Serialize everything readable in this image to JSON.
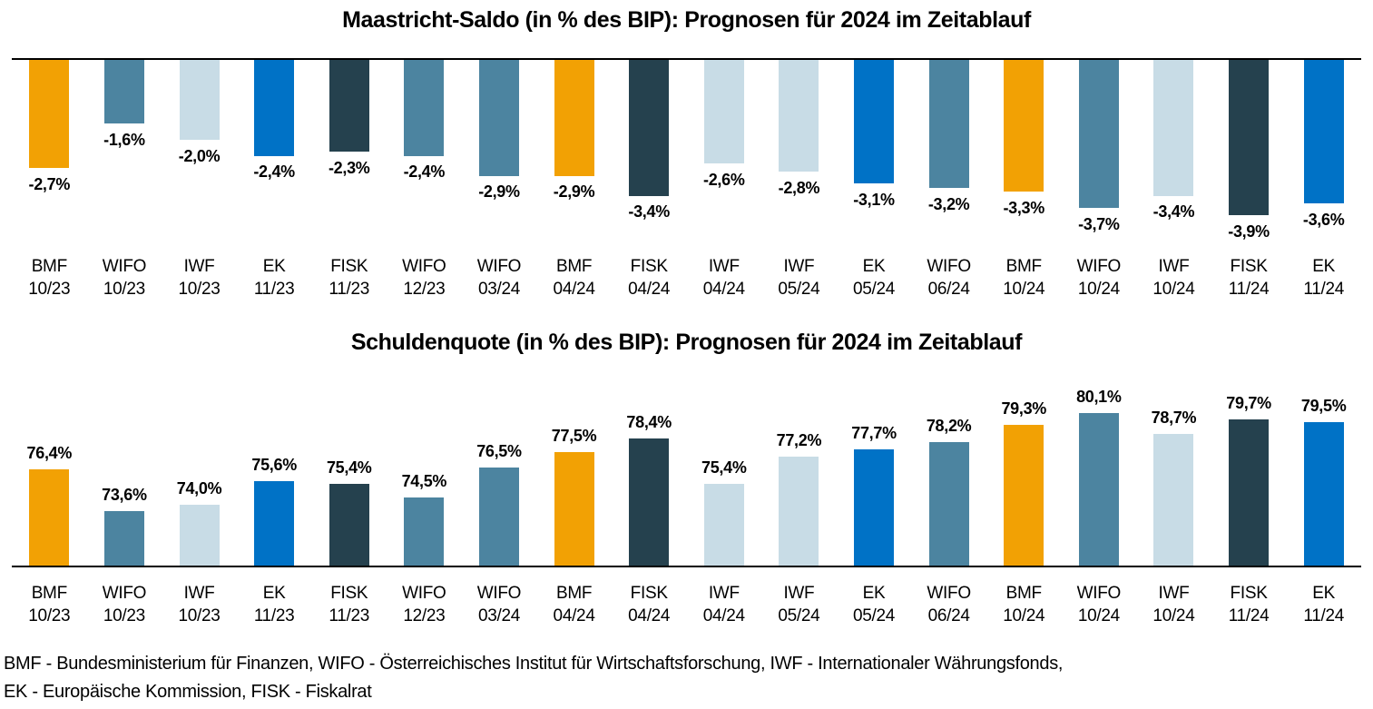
{
  "colors": {
    "BMF": "#F2A104",
    "WIFO": "#4C84A0",
    "IWF": "#C8DCE6",
    "EK": "#0072C6",
    "FISK": "#25414E",
    "axis": "#000000",
    "text": "#000000",
    "background": "#FFFFFF"
  },
  "chart_data": [
    {
      "type": "bar",
      "direction": "down",
      "title": "Maastricht-Saldo (in % des BIP): Prognosen für 2024 im Zeitablauf",
      "ylabel": "% des BIP",
      "ylim": [
        -4.55,
        0
      ],
      "grid": false,
      "legend_position": "none",
      "categories": [
        {
          "org": "BMF",
          "date": "10/23"
        },
        {
          "org": "WIFO",
          "date": "10/23"
        },
        {
          "org": "IWF",
          "date": "10/23"
        },
        {
          "org": "EK",
          "date": "11/23"
        },
        {
          "org": "FISK",
          "date": "11/23"
        },
        {
          "org": "WIFO",
          "date": "12/23"
        },
        {
          "org": "WIFO",
          "date": "03/24"
        },
        {
          "org": "BMF",
          "date": "04/24"
        },
        {
          "org": "FISK",
          "date": "04/24"
        },
        {
          "org": "IWF",
          "date": "04/24"
        },
        {
          "org": "IWF",
          "date": "05/24"
        },
        {
          "org": "EK",
          "date": "05/24"
        },
        {
          "org": "WIFO",
          "date": "06/24"
        },
        {
          "org": "BMF",
          "date": "10/24"
        },
        {
          "org": "WIFO",
          "date": "10/24"
        },
        {
          "org": "IWF",
          "date": "10/24"
        },
        {
          "org": "FISK",
          "date": "11/24"
        },
        {
          "org": "EK",
          "date": "11/24"
        }
      ],
      "values": [
        -2.7,
        -1.6,
        -2.0,
        -2.4,
        -2.3,
        -2.4,
        -2.9,
        -2.9,
        -3.4,
        -2.6,
        -2.8,
        -3.1,
        -3.2,
        -3.3,
        -3.7,
        -3.4,
        -3.9,
        -3.6
      ],
      "labels": [
        "-2,7%",
        "-1,6%",
        "-2,0%",
        "-2,4%",
        "-2,3%",
        "-2,4%",
        "-2,9%",
        "-2,9%",
        "-3,4%",
        "-2,6%",
        "-2,8%",
        "-3,1%",
        "-3,2%",
        "-3,3%",
        "-3,7%",
        "-3,4%",
        "-3,9%",
        "-3,6%"
      ]
    },
    {
      "type": "bar",
      "direction": "up",
      "title": "Schuldenquote (in % des BIP): Prognosen für 2024 im Zeitablauf",
      "ylabel": "% des BIP",
      "ylim": [
        70,
        82.8
      ],
      "grid": false,
      "legend_position": "none",
      "categories": [
        {
          "org": "BMF",
          "date": "10/23"
        },
        {
          "org": "WIFO",
          "date": "10/23"
        },
        {
          "org": "IWF",
          "date": "10/23"
        },
        {
          "org": "EK",
          "date": "11/23"
        },
        {
          "org": "FISK",
          "date": "11/23"
        },
        {
          "org": "WIFO",
          "date": "12/23"
        },
        {
          "org": "WIFO",
          "date": "03/24"
        },
        {
          "org": "BMF",
          "date": "04/24"
        },
        {
          "org": "FISK",
          "date": "04/24"
        },
        {
          "org": "IWF",
          "date": "04/24"
        },
        {
          "org": "IWF",
          "date": "05/24"
        },
        {
          "org": "EK",
          "date": "05/24"
        },
        {
          "org": "WIFO",
          "date": "06/24"
        },
        {
          "org": "BMF",
          "date": "10/24"
        },
        {
          "org": "WIFO",
          "date": "10/24"
        },
        {
          "org": "IWF",
          "date": "10/24"
        },
        {
          "org": "FISK",
          "date": "11/24"
        },
        {
          "org": "EK",
          "date": "11/24"
        }
      ],
      "values": [
        76.4,
        73.6,
        74.0,
        75.6,
        75.4,
        74.5,
        76.5,
        77.5,
        78.4,
        75.4,
        77.2,
        77.7,
        78.2,
        79.3,
        80.1,
        78.7,
        79.7,
        79.5
      ],
      "labels": [
        "76,4%",
        "73,6%",
        "74,0%",
        "75,6%",
        "75,4%",
        "74,5%",
        "76,5%",
        "77,5%",
        "78,4%",
        "75,4%",
        "77,2%",
        "77,7%",
        "78,2%",
        "79,3%",
        "80,1%",
        "78,7%",
        "79,7%",
        "79,5%"
      ]
    }
  ],
  "footer": {
    "line1": "BMF - Bundesministerium für Finanzen, WIFO - Österreichisches Institut für Wirtschaftsforschung, IWF - Internationaler Währungsfonds,",
    "line2": "EK - Europäische Kommission, FISK - Fiskalrat"
  }
}
